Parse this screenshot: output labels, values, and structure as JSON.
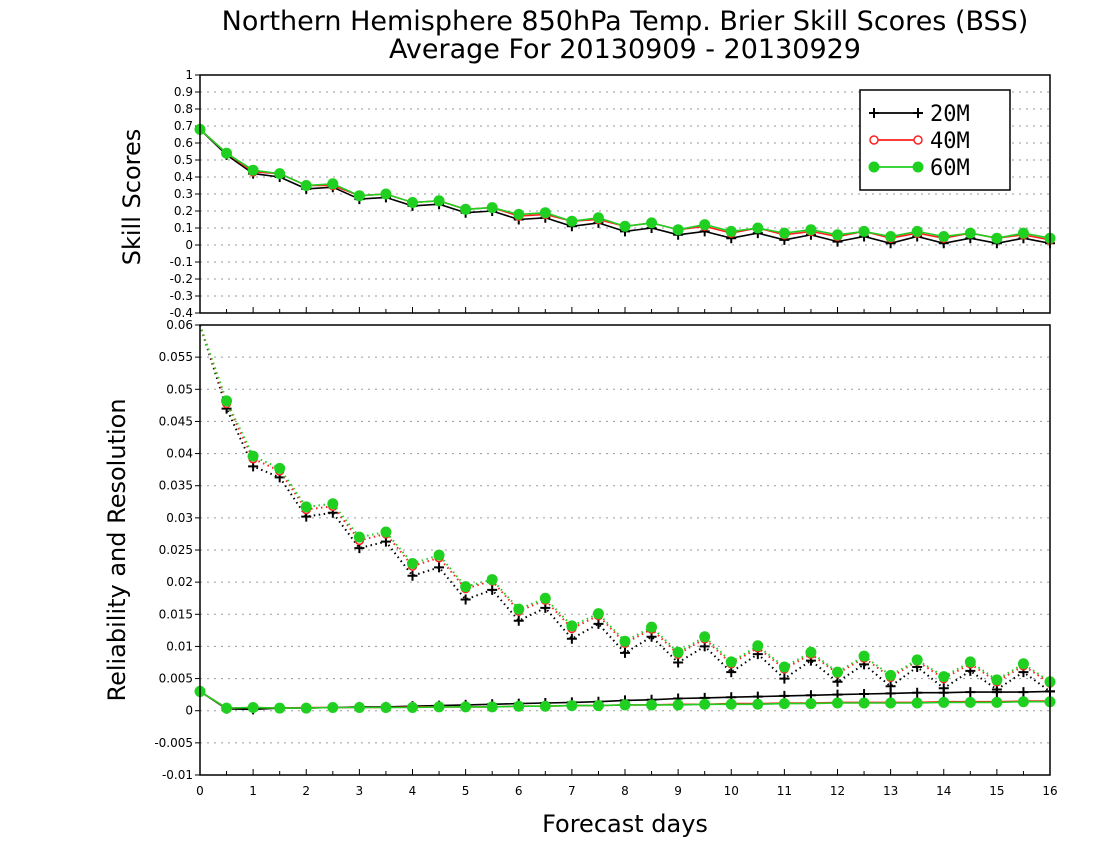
{
  "title": "Northern Hemisphere 850hPa Temp. Brier Skill Scores (BSS)",
  "subtitle": "Average For 20130909 - 20130929",
  "colors": {
    "20M": "#000000",
    "40M": "#ff2020",
    "60M": "#20d020",
    "grid": "#9a9a9a"
  },
  "chart_data": [
    {
      "type": "line",
      "panel": "top",
      "ylabel": "Skill Scores",
      "ylim": [
        -0.4,
        1
      ],
      "yticks": [
        "1",
        "0.9",
        "0.8",
        "0.7",
        "0.6",
        "0.5",
        "0.4",
        "0.3",
        "0.2",
        "0.1",
        "0",
        "-0.1",
        "-0.2",
        "-0.3",
        "-0.4"
      ],
      "xlim": [
        0,
        16
      ],
      "grid": true,
      "legend": {
        "placement": "top-right",
        "entries": [
          "20M",
          "40M",
          "60M"
        ]
      },
      "x": [
        0,
        0.5,
        1,
        1.5,
        2,
        2.5,
        3,
        3.5,
        4,
        4.5,
        5,
        5.5,
        6,
        6.5,
        7,
        7.5,
        8,
        8.5,
        9,
        9.5,
        10,
        10.5,
        11,
        11.5,
        12,
        12.5,
        13,
        13.5,
        14,
        14.5,
        15,
        15.5,
        16
      ],
      "series": [
        {
          "name": "20M",
          "marker": "plus",
          "values": [
            0.68,
            0.53,
            0.42,
            0.4,
            0.33,
            0.34,
            0.27,
            0.28,
            0.23,
            0.24,
            0.19,
            0.2,
            0.15,
            0.16,
            0.11,
            0.13,
            0.08,
            0.1,
            0.06,
            0.08,
            0.04,
            0.07,
            0.03,
            0.06,
            0.02,
            0.05,
            0.01,
            0.05,
            0.01,
            0.04,
            0.01,
            0.04,
            0.01
          ]
        },
        {
          "name": "40M",
          "marker": "open-circle",
          "values": [
            0.68,
            0.54,
            0.43,
            0.42,
            0.35,
            0.35,
            0.29,
            0.3,
            0.25,
            0.26,
            0.21,
            0.22,
            0.17,
            0.18,
            0.14,
            0.15,
            0.11,
            0.13,
            0.09,
            0.11,
            0.07,
            0.1,
            0.06,
            0.08,
            0.05,
            0.08,
            0.04,
            0.07,
            0.04,
            0.07,
            0.04,
            0.06,
            0.03
          ]
        },
        {
          "name": "60M",
          "marker": "filled-circle",
          "values": [
            0.68,
            0.54,
            0.44,
            0.42,
            0.35,
            0.36,
            0.29,
            0.3,
            0.25,
            0.26,
            0.21,
            0.22,
            0.18,
            0.19,
            0.14,
            0.16,
            0.11,
            0.13,
            0.09,
            0.12,
            0.08,
            0.1,
            0.07,
            0.09,
            0.06,
            0.08,
            0.05,
            0.08,
            0.05,
            0.07,
            0.04,
            0.07,
            0.04
          ]
        }
      ]
    },
    {
      "type": "line",
      "panel": "bottom",
      "ylabel": "Reliability and Resolution",
      "xlabel": "Forecast days",
      "ylim": [
        -0.01,
        0.06
      ],
      "yticks": [
        "0.06",
        "0.055",
        "0.05",
        "0.045",
        "0.04",
        "0.035",
        "0.03",
        "0.025",
        "0.02",
        "0.015",
        "0.01",
        "0.005",
        "0",
        "-0.005",
        "-0.01"
      ],
      "xlim": [
        0,
        16
      ],
      "xticks": [
        "0",
        "1",
        "2",
        "3",
        "4",
        "5",
        "6",
        "7",
        "8",
        "9",
        "10",
        "11",
        "12",
        "13",
        "14",
        "15",
        "16"
      ],
      "grid": true,
      "x": [
        0,
        0.5,
        1,
        1.5,
        2,
        2.5,
        3,
        3.5,
        4,
        4.5,
        5,
        5.5,
        6,
        6.5,
        7,
        7.5,
        8,
        8.5,
        9,
        9.5,
        10,
        10.5,
        11,
        11.5,
        12,
        12.5,
        13,
        13.5,
        14,
        14.5,
        15,
        15.5,
        16
      ],
      "series": [
        {
          "name": "20M",
          "quantity": "resolution",
          "line": "dotted",
          "marker": "plus",
          "values": [
            0.06,
            0.047,
            0.038,
            0.0363,
            0.0302,
            0.0308,
            0.0253,
            0.0263,
            0.021,
            0.0223,
            0.0173,
            0.0188,
            0.014,
            0.016,
            0.0112,
            0.0135,
            0.009,
            0.0115,
            0.0075,
            0.01,
            0.006,
            0.0088,
            0.005,
            0.0078,
            0.0045,
            0.0072,
            0.0038,
            0.0068,
            0.0035,
            0.0062,
            0.0033,
            0.006,
            0.003
          ]
        },
        {
          "name": "40M",
          "quantity": "resolution",
          "line": "dotted",
          "marker": "open-circle",
          "values": [
            0.06,
            0.0478,
            0.0392,
            0.0373,
            0.0313,
            0.0318,
            0.0265,
            0.0275,
            0.0225,
            0.0238,
            0.019,
            0.0202,
            0.0155,
            0.0172,
            0.0128,
            0.0148,
            0.0105,
            0.0127,
            0.0088,
            0.0112,
            0.0073,
            0.0098,
            0.0065,
            0.0088,
            0.0058,
            0.0082,
            0.0052,
            0.0077,
            0.005,
            0.0073,
            0.0045,
            0.007,
            0.0043
          ]
        },
        {
          "name": "60M",
          "quantity": "resolution",
          "line": "dotted",
          "marker": "filled-circle",
          "values": [
            0.06,
            0.0482,
            0.0396,
            0.0377,
            0.0317,
            0.0322,
            0.027,
            0.0278,
            0.0229,
            0.0242,
            0.0193,
            0.0204,
            0.0158,
            0.0175,
            0.0132,
            0.0151,
            0.0108,
            0.013,
            0.0091,
            0.0115,
            0.0076,
            0.0101,
            0.0068,
            0.0091,
            0.006,
            0.0085,
            0.0055,
            0.0079,
            0.0053,
            0.0076,
            0.0048,
            0.0073,
            0.0045
          ]
        },
        {
          "name": "20M",
          "quantity": "reliability",
          "line": "solid",
          "marker": "plus",
          "values": [
            0.003,
            0.0003,
            0.0002,
            0.0004,
            0.0004,
            0.0005,
            0.0006,
            0.0006,
            0.0007,
            0.0008,
            0.0009,
            0.001,
            0.0011,
            0.0012,
            0.0013,
            0.0014,
            0.0016,
            0.0017,
            0.0019,
            0.002,
            0.0021,
            0.0022,
            0.0023,
            0.0024,
            0.0025,
            0.0026,
            0.0027,
            0.0028,
            0.0028,
            0.0029,
            0.0029,
            0.0029,
            0.003
          ]
        },
        {
          "name": "40M",
          "quantity": "reliability",
          "line": "solid",
          "marker": "open-circle",
          "values": [
            0.003,
            0.0004,
            0.0005,
            0.0004,
            0.0005,
            0.0005,
            0.0005,
            0.0005,
            0.0006,
            0.0006,
            0.0006,
            0.0006,
            0.0007,
            0.0007,
            0.0008,
            0.0008,
            0.0009,
            0.0009,
            0.001,
            0.001,
            0.0011,
            0.0011,
            0.0012,
            0.0012,
            0.0013,
            0.0013,
            0.0013,
            0.0013,
            0.0014,
            0.0014,
            0.0014,
            0.0015,
            0.0015
          ]
        },
        {
          "name": "60M",
          "quantity": "reliability",
          "line": "solid",
          "marker": "filled-circle",
          "values": [
            0.003,
            0.0004,
            0.0005,
            0.0004,
            0.0004,
            0.0005,
            0.0005,
            0.0005,
            0.0005,
            0.0006,
            0.0006,
            0.0006,
            0.0007,
            0.0007,
            0.0008,
            0.0008,
            0.0009,
            0.0009,
            0.0009,
            0.001,
            0.001,
            0.001,
            0.0011,
            0.0011,
            0.0012,
            0.0012,
            0.0012,
            0.0012,
            0.0013,
            0.0013,
            0.0013,
            0.0014,
            0.0014
          ]
        }
      ]
    }
  ]
}
